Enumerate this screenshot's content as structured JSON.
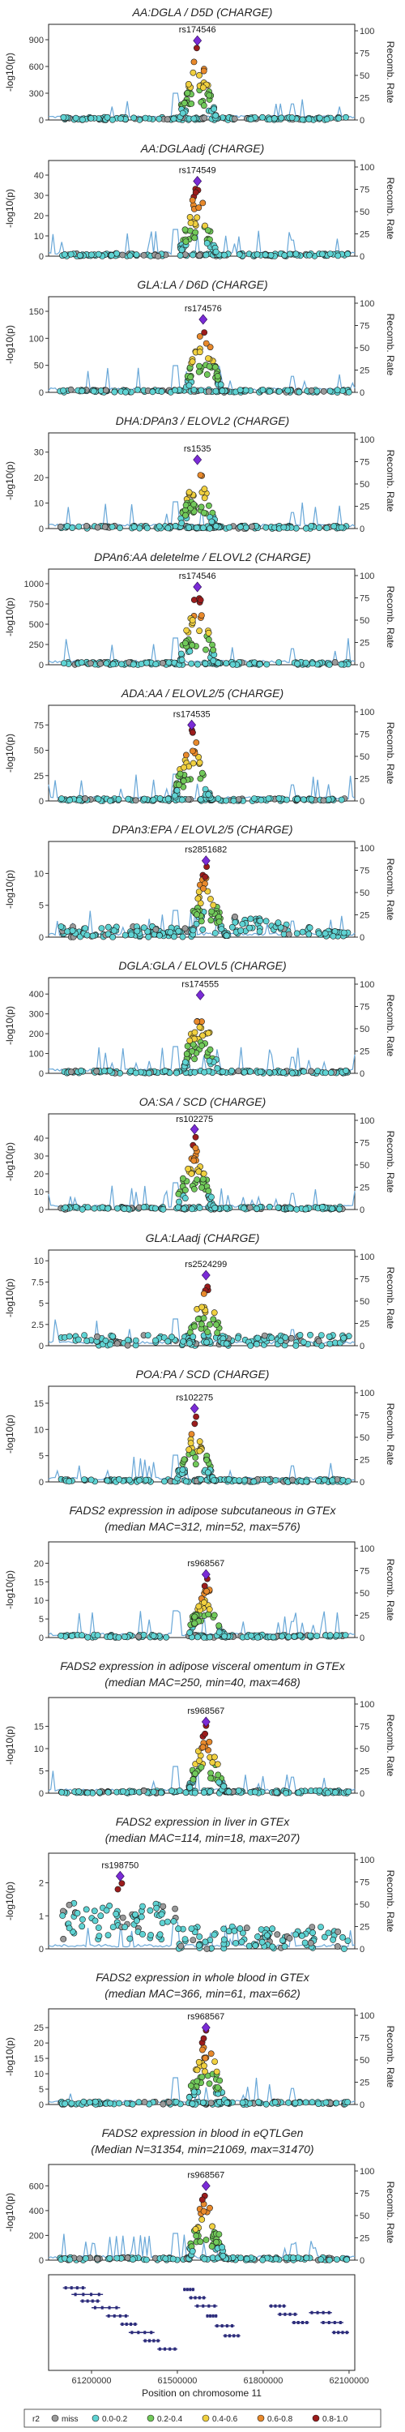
{
  "chart_data": [
    {
      "type": "scatter",
      "title": "AA:DGLA / D5D (CHARGE)",
      "lead_snp": "rs174546",
      "ylabel": "-log10(p)",
      "ylabel_right": "Recomb. Rate",
      "yticks": [
        0,
        300,
        600,
        900
      ],
      "ylim": [
        0,
        1000
      ],
      "rticks": [
        0,
        25,
        50,
        75,
        100
      ],
      "peak": {
        "x": 61570000,
        "y": 890
      },
      "shape": "peak"
    },
    {
      "type": "scatter",
      "title": "AA:DGLAadj (CHARGE)",
      "lead_snp": "rs174549",
      "ylabel": "-log10(p)",
      "ylabel_right": "Recomb. Rate",
      "yticks": [
        0,
        10,
        20,
        30,
        40
      ],
      "ylim": [
        0,
        44
      ],
      "rticks": [
        0,
        25,
        50,
        75,
        100
      ],
      "peak": {
        "x": 61570000,
        "y": 37
      },
      "shape": "peak"
    },
    {
      "type": "scatter",
      "title": "GLA:LA / D6D (CHARGE)",
      "lead_snp": "rs174576",
      "ylabel": "-log10(p)",
      "ylabel_right": "Recomb. Rate",
      "yticks": [
        0,
        50,
        100,
        150
      ],
      "ylim": [
        0,
        165
      ],
      "rticks": [
        0,
        25,
        50,
        75,
        100
      ],
      "peak": {
        "x": 61590000,
        "y": 135
      },
      "shape": "peak"
    },
    {
      "type": "scatter",
      "title": "DHA:DPAn3 / ELOVL2 (CHARGE)",
      "lead_snp": "rs1535",
      "ylabel": "-log10(p)",
      "ylabel_right": "Recomb. Rate",
      "yticks": [
        0,
        10,
        20,
        30
      ],
      "ylim": [
        0,
        35
      ],
      "rticks": [
        0,
        25,
        50,
        75,
        100
      ],
      "peak": {
        "x": 61570000,
        "y": 27
      },
      "shape": "peak"
    },
    {
      "type": "scatter",
      "title": "DPAn6:AA deletelme / ELOVL2 (CHARGE)",
      "lead_snp": "rs174546",
      "ylabel": "-log10(p)",
      "ylabel_right": "Recomb. Rate",
      "yticks": [
        0,
        250,
        500,
        750,
        1000
      ],
      "ylim": [
        0,
        1100
      ],
      "rticks": [
        0,
        25,
        50,
        75,
        100
      ],
      "peak": {
        "x": 61570000,
        "y": 960
      },
      "shape": "peak"
    },
    {
      "type": "scatter",
      "title": "ADA:AA / ELOVL2/5 (CHARGE)",
      "lead_snp": "rs174535",
      "ylabel": "-log10(p)",
      "ylabel_right": "Recomb. Rate",
      "yticks": [
        0,
        25,
        50,
        75
      ],
      "ylim": [
        0,
        88
      ],
      "rticks": [
        0,
        25,
        50,
        75,
        100
      ],
      "peak": {
        "x": 61550000,
        "y": 75
      },
      "shape": "peak"
    },
    {
      "type": "scatter",
      "title": "DPAn3:EPA / ELOVL2/5 (CHARGE)",
      "lead_snp": "rs2851682",
      "ylabel": "-log10(p)",
      "ylabel_right": "Recomb. Rate",
      "yticks": [
        0,
        5,
        10
      ],
      "ylim": [
        0,
        14
      ],
      "rticks": [
        0,
        25,
        50,
        75,
        100
      ],
      "peak": {
        "x": 61600000,
        "y": 12
      },
      "shape": "broad"
    },
    {
      "type": "scatter",
      "title": "DGLA:GLA / ELOVL5 (CHARGE)",
      "lead_snp": "rs174555",
      "ylabel": "-log10(p)",
      "ylabel_right": "Recomb. Rate",
      "yticks": [
        0,
        100,
        200,
        300,
        400
      ],
      "ylim": [
        0,
        450
      ],
      "rticks": [
        0,
        25,
        50,
        75,
        100
      ],
      "peak": {
        "x": 61580000,
        "y": 395
      },
      "shape": "peak"
    },
    {
      "type": "scatter",
      "title": "OA:SA / SCD (CHARGE)",
      "lead_snp": "rs102275",
      "ylabel": "-log10(p)",
      "ylabel_right": "Recomb. Rate",
      "yticks": [
        0,
        10,
        20,
        30,
        40
      ],
      "ylim": [
        0,
        50
      ],
      "rticks": [
        0,
        25,
        50,
        75,
        100
      ],
      "peak": {
        "x": 61560000,
        "y": 45
      },
      "shape": "peak"
    },
    {
      "type": "scatter",
      "title": "GLA:LAadj (CHARGE)",
      "lead_snp": "rs2524299",
      "ylabel": "-log10(p)",
      "ylabel_right": "Recomb. Rate",
      "yticks": [
        0,
        2.5,
        5,
        7.5,
        10
      ],
      "ylim": [
        0,
        10.5
      ],
      "rticks": [
        0,
        25,
        50,
        75,
        100
      ],
      "peak": {
        "x": 61600000,
        "y": 8.3
      },
      "shape": "flat"
    },
    {
      "type": "scatter",
      "title": "POA:PA / SCD (CHARGE)",
      "lead_snp": "rs102275",
      "ylabel": "-log10(p)",
      "ylabel_right": "Recomb. Rate",
      "yticks": [
        0,
        5,
        10,
        15
      ],
      "ylim": [
        0,
        17
      ],
      "rticks": [
        0,
        25,
        50,
        75,
        100
      ],
      "peak": {
        "x": 61560000,
        "y": 14
      },
      "shape": "peak"
    },
    {
      "type": "scatter",
      "title": "FADS2 expression in adipose subcutaneous in GTEx",
      "subtitle": "(median MAC=312, min=52, max=576)",
      "lead_snp": "rs968567",
      "ylabel": "-log10(p)",
      "ylabel_right": "Recomb. Rate",
      "yticks": [
        0,
        5,
        10,
        15,
        20
      ],
      "ylim": [
        0,
        24
      ],
      "rticks": [
        0,
        25,
        50,
        75,
        100
      ],
      "peak": {
        "x": 61600000,
        "y": 17
      },
      "shape": "peak"
    },
    {
      "type": "scatter",
      "title": "FADS2 expression in adipose visceral omentum in GTEx",
      "subtitle": "(median MAC=250, min=40, max=468)",
      "lead_snp": "rs968567",
      "ylabel": "-log10(p)",
      "ylabel_right": "Recomb. Rate",
      "yticks": [
        0,
        5,
        10,
        15
      ],
      "ylim": [
        0,
        20
      ],
      "rticks": [
        0,
        25,
        50,
        75,
        100
      ],
      "peak": {
        "x": 61600000,
        "y": 16
      },
      "shape": "peak"
    },
    {
      "type": "scatter",
      "title": "FADS2 expression in liver in GTEx",
      "subtitle": "(median MAC=114, min=18, max=207)",
      "lead_snp": "rs198750",
      "ylabel": "-log10(p)",
      "ylabel_right": "Recomb. Rate",
      "yticks": [
        0,
        1,
        2
      ],
      "ylim": [
        0,
        2.7
      ],
      "rticks": [
        0,
        25,
        50,
        75,
        100
      ],
      "peak": {
        "x": 61300000,
        "y": 2.2
      },
      "shape": "liver"
    },
    {
      "type": "scatter",
      "title": "FADS2 expression in whole blood in GTEx",
      "subtitle": "(median MAC=366, min=61, max=662)",
      "lead_snp": "rs968567",
      "ylabel": "-log10(p)",
      "ylabel_right": "Recomb. Rate",
      "yticks": [
        0,
        5,
        10,
        15,
        20,
        25
      ],
      "ylim": [
        0,
        29
      ],
      "rticks": [
        0,
        25,
        50,
        75,
        100
      ],
      "peak": {
        "x": 61600000,
        "y": 25
      },
      "shape": "peak"
    },
    {
      "type": "scatter",
      "title": "FADS2 expression in blood in eQTLGen",
      "subtitle": "(Median N=31354, min=21069, max=31470)",
      "lead_snp": "rs968567",
      "ylabel": "-log10(p)",
      "ylabel_right": "Recomb. Rate",
      "yticks": [
        0,
        200,
        400,
        600
      ],
      "ylim": [
        0,
        720
      ],
      "rticks": [
        0,
        25,
        50,
        75,
        100
      ],
      "peak": {
        "x": 61600000,
        "y": 600
      },
      "shape": "peak"
    }
  ],
  "x_axis": {
    "label": "Position on chromosome 11",
    "ticks": [
      61200000,
      61500000,
      61800000,
      62100000
    ],
    "range": [
      61050000,
      62120000
    ]
  },
  "legend": {
    "title": "r2",
    "items": [
      {
        "label": "miss",
        "color": "#9a9a9a"
      },
      {
        "label": "0.0-0.2",
        "color": "#5fd3d3"
      },
      {
        "label": "0.2-0.4",
        "color": "#71c95a"
      },
      {
        "label": "0.4-0.6",
        "color": "#f0d040"
      },
      {
        "label": "0.6-0.8",
        "color": "#e8892b"
      },
      {
        "label": "0.8-1.0",
        "color": "#9b1c1c"
      }
    ]
  },
  "lead_color": "#7a2bd6",
  "recomb_color": "#6aa8d8"
}
